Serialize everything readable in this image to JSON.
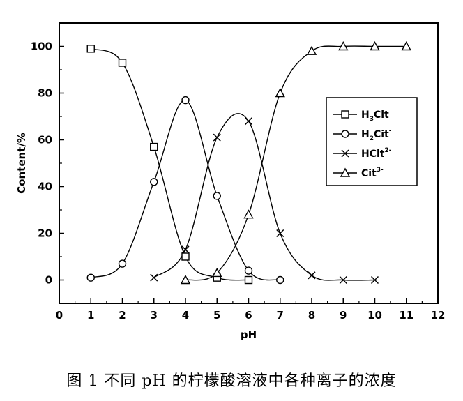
{
  "caption": "图 1  不同 pH 的柠檬酸溶液中各种离子的浓度",
  "chart_data": {
    "type": "line",
    "title": "",
    "xlabel": "pH",
    "ylabel": "Content/%",
    "xlim": [
      0,
      12
    ],
    "ylim": [
      -10,
      110
    ],
    "xticks": [
      0,
      1,
      2,
      3,
      4,
      5,
      6,
      7,
      8,
      9,
      10,
      11,
      12
    ],
    "yticks": [
      0,
      20,
      40,
      60,
      80,
      100
    ],
    "grid": false,
    "legend_position": "right-middle",
    "series": [
      {
        "name": "H3Cit",
        "legend": {
          "base": "H",
          "sub": "3",
          "rest": "Cit",
          "sup": ""
        },
        "marker": "square",
        "x": [
          1,
          2,
          3,
          4,
          5,
          6
        ],
        "y": [
          99,
          93,
          57,
          10,
          1,
          0
        ]
      },
      {
        "name": "H2Cit-",
        "legend": {
          "base": "H",
          "sub": "2",
          "rest": "Cit",
          "sup": "-"
        },
        "marker": "circle",
        "x": [
          1,
          2,
          3,
          4,
          5,
          6,
          7
        ],
        "y": [
          1,
          7,
          42,
          77,
          36,
          4,
          0
        ]
      },
      {
        "name": "HCit2-",
        "legend": {
          "base": "",
          "sub": "",
          "rest": "HCit",
          "sup": "2-"
        },
        "marker": "x",
        "x": [
          3,
          4,
          5,
          6,
          7,
          8,
          9,
          10
        ],
        "y": [
          1,
          13,
          61,
          68,
          20,
          2,
          0,
          0
        ]
      },
      {
        "name": "Cit3-",
        "legend": {
          "base": "",
          "sub": "",
          "rest": "Cit",
          "sup": "3-"
        },
        "marker": "triangle",
        "x": [
          4,
          5,
          6,
          7,
          8,
          9,
          10,
          11
        ],
        "y": [
          0,
          3,
          28,
          80,
          98,
          100,
          100,
          100
        ]
      }
    ]
  }
}
